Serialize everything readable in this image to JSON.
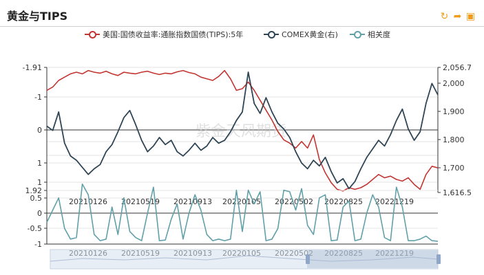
{
  "header": {
    "title": "黄金与TIPS"
  },
  "toolbar": {
    "icons": [
      "refresh-icon",
      "share-icon",
      "save-image-icon"
    ]
  },
  "watermark": "紫金天风期货",
  "colors": {
    "tips": "#c23531",
    "gold": "#2f4554",
    "corr": "#61a0a8"
  },
  "chart_data": [
    {
      "type": "line",
      "series": [
        {
          "name": "美国:国债收益率:通胀指数国债(TIPS):5年",
          "axis": "left"
        },
        {
          "name": "COMEX黄金(右)",
          "axis": "right"
        }
      ],
      "x_ticks": [
        "20210126",
        "20210519",
        "20210913",
        "20220105",
        "20220502",
        "20220825",
        "20221219"
      ],
      "left_axis": {
        "inverted": true,
        "ticks": [
          "-1.91",
          "-1",
          "0",
          "1",
          "1"
        ]
      },
      "right_axis": {
        "ticks": [
          "2,056.7",
          "2,000",
          "1,900",
          "1,800",
          "1,700",
          "1,616.5"
        ],
        "range": [
          1616.5,
          2056.7
        ]
      },
      "gold_data": [
        1850,
        1835,
        1900,
        1790,
        1745,
        1730,
        1705,
        1680,
        1700,
        1715,
        1760,
        1785,
        1830,
        1880,
        1905,
        1855,
        1800,
        1760,
        1780,
        1810,
        1785,
        1800,
        1760,
        1745,
        1765,
        1790,
        1765,
        1780,
        1810,
        1790,
        1800,
        1830,
        1870,
        1900,
        2040,
        1930,
        1895,
        1950,
        1900,
        1860,
        1840,
        1810,
        1760,
        1720,
        1700,
        1730,
        1710,
        1740,
        1690,
        1650,
        1665,
        1630,
        1655,
        1700,
        1740,
        1770,
        1800,
        1780,
        1820,
        1870,
        1910,
        1840,
        1800,
        1830,
        1930,
        2000,
        1960
      ],
      "tips_data": [
        -1.2,
        -1.3,
        -1.5,
        -1.6,
        -1.7,
        -1.75,
        -1.7,
        -1.8,
        -1.75,
        -1.72,
        -1.78,
        -1.7,
        -1.65,
        -1.75,
        -1.72,
        -1.7,
        -1.75,
        -1.78,
        -1.72,
        -1.68,
        -1.72,
        -1.7,
        -1.76,
        -1.8,
        -1.74,
        -1.7,
        -1.6,
        -1.55,
        -1.5,
        -1.62,
        -1.8,
        -1.55,
        -1.2,
        -1.25,
        -1.45,
        -1.2,
        -0.9,
        -0.6,
        -0.3,
        0.05,
        0.3,
        0.4,
        0.55,
        0.35,
        0.55,
        0.15,
        0.9,
        1.3,
        1.6,
        1.8,
        1.85,
        1.75,
        1.8,
        1.75,
        1.65,
        1.5,
        1.35,
        1.45,
        1.4,
        1.5,
        1.55,
        1.45,
        1.65,
        1.8,
        1.35,
        1.1,
        1.15
      ]
    },
    {
      "type": "line",
      "series": [
        {
          "name": "相关度"
        }
      ],
      "y_ticks": [
        "1.92",
        "0.5",
        "0",
        "-0.5",
        "-1"
      ],
      "x_ticks": [
        "20210126",
        "20210519",
        "20210913",
        "20220105",
        "20220502",
        "20220825",
        "20221219"
      ],
      "values": [
        -0.3,
        0.1,
        0.5,
        -0.5,
        -0.85,
        -0.8,
        0.95,
        0.6,
        -0.7,
        -0.9,
        -0.85,
        0.2,
        -0.7,
        0.5,
        -0.6,
        -0.8,
        -0.9,
        0.0,
        0.85,
        -0.9,
        -0.88,
        -0.2,
        0.3,
        -0.85,
        0.0,
        0.6,
        0.1,
        -0.7,
        -0.9,
        -0.85,
        -0.9,
        -0.85,
        0.75,
        -0.6,
        0.75,
        0.3,
        0.7,
        -0.9,
        -0.85,
        -0.5,
        0.75,
        0.7,
        0.1,
        0.8,
        -0.4,
        -0.7,
        0.5,
        0.6,
        -0.9,
        -0.88,
        0.2,
        0.4,
        -0.9,
        -0.85,
        0.0,
        0.6,
        0.2,
        -0.8,
        -0.9,
        0.85,
        0.2,
        -0.9,
        -0.9,
        -0.85,
        -0.75,
        -0.9,
        -0.92
      ]
    }
  ]
}
